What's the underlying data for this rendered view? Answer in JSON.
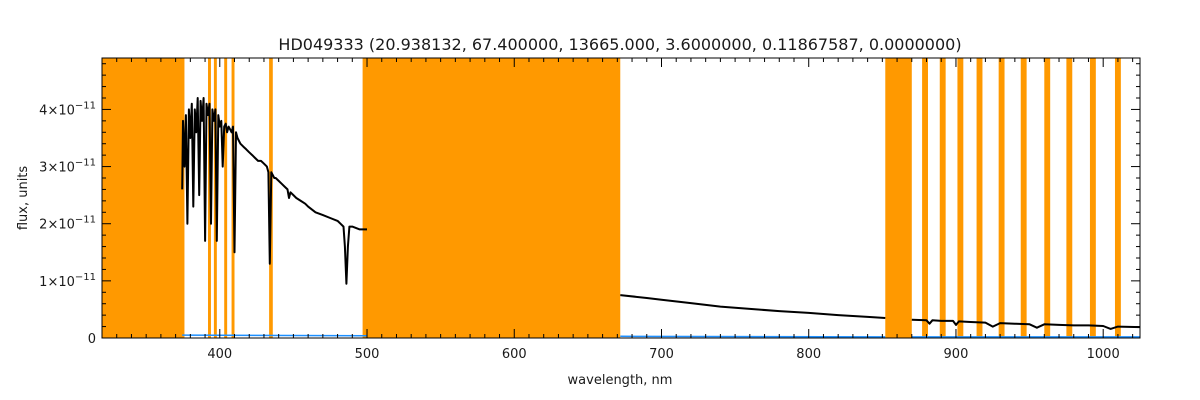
{
  "chart_data": {
    "type": "line",
    "title": "HD049333   (20.938132, 67.400000, 13665.000, 3.6000000, 0.11867587, 0.0000000)",
    "xlabel": "wavelength, nm",
    "ylabel": "flux, units",
    "xlim": [
      320,
      1025
    ],
    "ylim": [
      0,
      4.9e-11
    ],
    "x_ticks": [
      400,
      500,
      600,
      700,
      800,
      900,
      1000
    ],
    "x_tick_labels": [
      "400",
      "500",
      "600",
      "700",
      "800",
      "900",
      "1000"
    ],
    "y_ticks": [
      0,
      1e-11,
      2e-11,
      3e-11,
      4e-11
    ],
    "y_tick_labels": [
      {
        "mant": "0",
        "exp": ""
      },
      {
        "mant": "1×10",
        "exp": "−11"
      },
      {
        "mant": "2×10",
        "exp": "−11"
      },
      {
        "mant": "3×10",
        "exp": "−11"
      },
      {
        "mant": "4×10",
        "exp": "−11"
      }
    ],
    "grid": false,
    "colors": {
      "flux": "#000000",
      "error": "#1e90ff",
      "mask": "#ff9900",
      "axes": "#000000"
    },
    "masked_regions": [
      [
        320,
        376
      ],
      [
        392,
        394
      ],
      [
        396,
        398
      ],
      [
        403,
        405
      ],
      [
        408,
        410
      ],
      [
        433.5,
        436
      ],
      [
        497,
        672
      ],
      [
        852,
        870
      ],
      [
        877,
        881
      ],
      [
        889,
        893
      ],
      [
        901,
        905
      ],
      [
        914,
        918
      ],
      [
        929,
        933
      ],
      [
        944,
        948
      ],
      [
        960,
        964
      ],
      [
        975,
        979
      ],
      [
        991,
        995
      ],
      [
        1008,
        1012
      ]
    ],
    "series": [
      {
        "name": "flux",
        "segments": [
          {
            "x": [
              374.5,
              375,
              376,
              377,
              378,
              379,
              380,
              381,
              382,
              383,
              384,
              385,
              386,
              387,
              388,
              389,
              390,
              391,
              392,
              393,
              394,
              395,
              396,
              397,
              398,
              399,
              400,
              401,
              402,
              403,
              404,
              405,
              406,
              407,
              408,
              409,
              410,
              411,
              412,
              414,
              416,
              418,
              420,
              422,
              424,
              426,
              428,
              430,
              432,
              433,
              434,
              435,
              436,
              437,
              438,
              440,
              442,
              444,
              446,
              447,
              448,
              450,
              452,
              455,
              458,
              460,
              465,
              470,
              475,
              480,
              482,
              484,
              485,
              486,
              487,
              488,
              490,
              495,
              500
            ],
            "y": [
              2.6e-11,
              3.8e-11,
              3e-11,
              3.9e-11,
              2e-11,
              4e-11,
              3.5e-11,
              4.1e-11,
              2.3e-11,
              4e-11,
              3.6e-11,
              4.2e-11,
              2.5e-11,
              4.15e-11,
              3.8e-11,
              4.2e-11,
              1.7e-11,
              4.1e-11,
              3.9e-11,
              4.1e-11,
              2e-11,
              4e-11,
              3.8e-11,
              4e-11,
              1.7e-11,
              3.9e-11,
              3.7e-11,
              3.8e-11,
              3e-11,
              3.7e-11,
              3.75e-11,
              3.6e-11,
              3.7e-11,
              3.65e-11,
              3.6e-11,
              3.7e-11,
              1.5e-11,
              3.6e-11,
              3.5e-11,
              3.4e-11,
              3.35e-11,
              3.3e-11,
              3.25e-11,
              3.2e-11,
              3.15e-11,
              3.1e-11,
              3.1e-11,
              3.05e-11,
              3e-11,
              2.9e-11,
              1.3e-11,
              2.9e-11,
              2.85e-11,
              2.8e-11,
              2.8e-11,
              2.75e-11,
              2.7e-11,
              2.65e-11,
              2.6e-11,
              2.45e-11,
              2.55e-11,
              2.5e-11,
              2.45e-11,
              2.4e-11,
              2.35e-11,
              2.3e-11,
              2.2e-11,
              2.15e-11,
              2.1e-11,
              2.05e-11,
              2e-11,
              1.95e-11,
              1.6e-11,
              9.5e-12,
              1.6e-11,
              1.95e-11,
              1.95e-11,
              1.9e-11,
              1.9e-11
            ]
          },
          {
            "x": [
              672,
              690,
              700,
              720,
              730,
              740,
              760,
              780,
              800,
              820,
              840,
              852
            ],
            "y": [
              7.5e-12,
              7e-12,
              6.7e-12,
              6.1e-12,
              5.8e-12,
              5.5e-12,
              5.1e-12,
              4.7e-12,
              4.4e-12,
              4e-12,
              3.7e-12,
              3.5e-12
            ]
          },
          {
            "x": [
              870,
              880,
              882,
              884,
              890,
              898,
              900,
              902,
              910,
              920,
              925,
              930,
              940,
              950,
              955,
              960,
              970,
              980,
              990,
              1000,
              1005,
              1010,
              1025
            ],
            "y": [
              3.2e-12,
              3.1e-12,
              2.5e-12,
              3.1e-12,
              3e-12,
              3e-12,
              2.3e-12,
              2.9e-12,
              2.8e-12,
              2.7e-12,
              2e-12,
              2.6e-12,
              2.5e-12,
              2.4e-12,
              1.8e-12,
              2.4e-12,
              2.3e-12,
              2.2e-12,
              2.2e-12,
              2.1e-12,
              1.6e-12,
              2e-12,
              1.9e-12
            ]
          }
        ]
      },
      {
        "name": "error",
        "segments": [
          {
            "x": [
              374.5,
              500
            ],
            "y": [
              5e-13,
              4e-13
            ]
          },
          {
            "x": [
              672,
              852
            ],
            "y": [
              3e-13,
              2e-13
            ]
          },
          {
            "x": [
              870,
              1025
            ],
            "y": [
              2e-13,
              2e-13
            ]
          }
        ]
      }
    ]
  }
}
